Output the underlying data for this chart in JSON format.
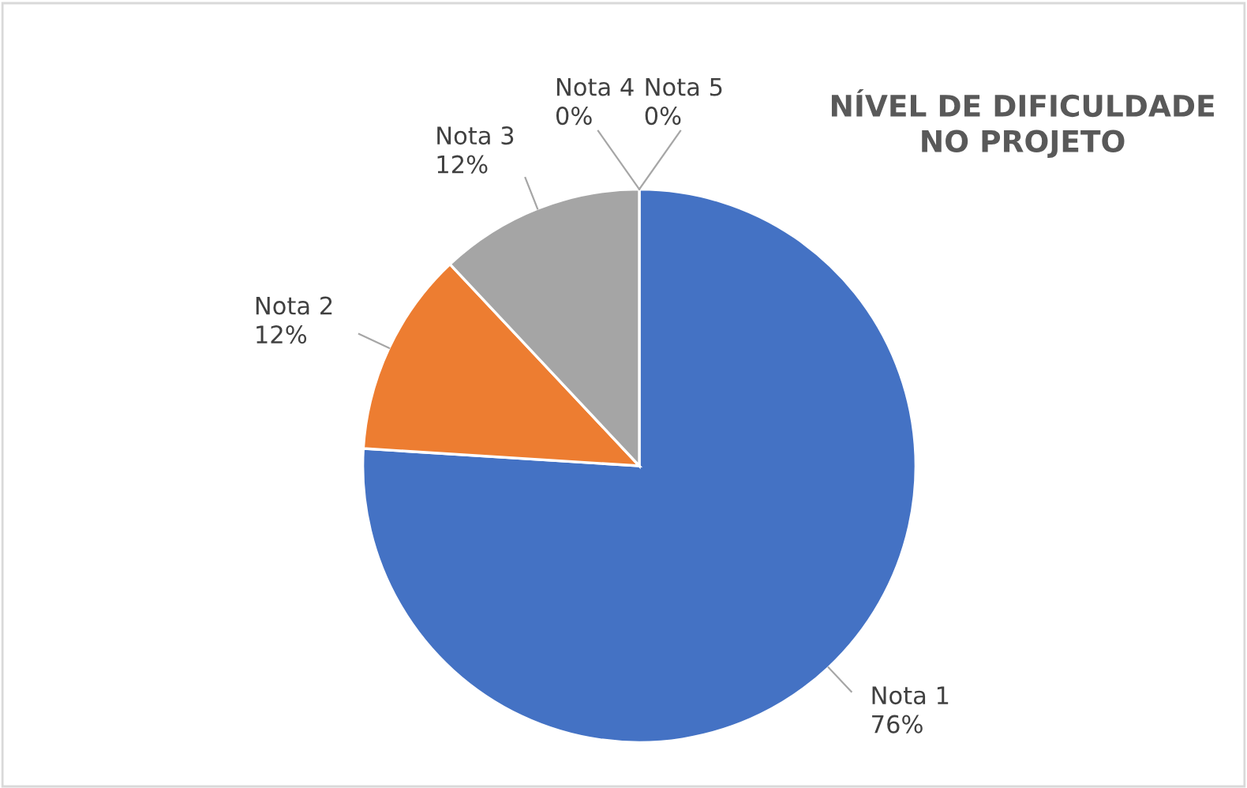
{
  "chart_data": {
    "type": "pie",
    "title": "NÍVEL DE DIFICULDADE\nNO PROJETO",
    "categories": [
      "Nota 1",
      "Nota 2",
      "Nota 3",
      "Nota 4",
      "Nota 5"
    ],
    "values": [
      76,
      12,
      12,
      0,
      0
    ],
    "colors": [
      "#4472c4",
      "#ed7d31",
      "#a5a5a5",
      "#ffc000",
      "#5b9bd5"
    ],
    "value_labels": [
      "76%",
      "12%",
      "12%",
      "0%",
      "0%"
    ],
    "legend": false
  }
}
